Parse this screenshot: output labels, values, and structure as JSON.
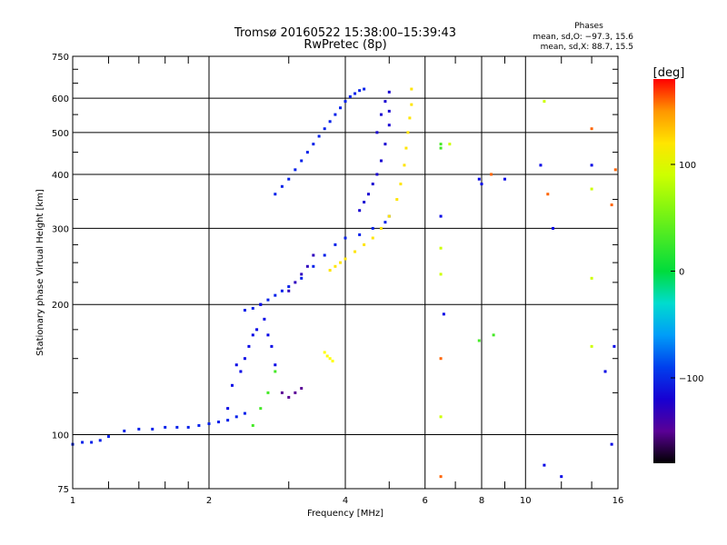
{
  "chart_data": {
    "type": "scatter",
    "title": "Tromsø 20160522 15:38:00–15:39:43",
    "subtitle": "RwPretec (8p)",
    "xlabel": "Frequency [MHz]",
    "ylabel": "Stationary phase Virtual Height [km]",
    "x_scale": "log",
    "y_scale": "log",
    "xlim": [
      1,
      16
    ],
    "ylim": [
      75,
      750
    ],
    "x_ticks": [
      1,
      2,
      4,
      6,
      8,
      10,
      16
    ],
    "x_tick_labels": [
      "1",
      "2",
      "4",
      "6",
      "8",
      "10",
      "16"
    ],
    "x_minor_ticks": [
      1.2,
      1.4,
      1.6,
      1.8,
      3,
      5,
      7,
      9,
      12,
      14
    ],
    "y_ticks": [
      75,
      100,
      200,
      300,
      400,
      500,
      600,
      750
    ],
    "y_tick_labels": [
      "75",
      "100",
      "200",
      "300",
      "400",
      "500",
      "600",
      "750"
    ],
    "grid": true,
    "stats": {
      "title": "Phases",
      "line_o": "mean, sd,O:  −97.3, 15.6",
      "line_x": "mean, sd,X:  88.7, 15.5"
    },
    "colorbar": {
      "label": "[deg]",
      "range": [
        -180,
        180
      ],
      "ticks": [
        100,
        0,
        -100
      ],
      "tick_labels": [
        "100",
        "0",
        "−100"
      ]
    },
    "series": [
      {
        "phase": -100,
        "x": [
          1.0,
          1.05,
          1.1,
          1.15,
          1.2,
          1.3,
          1.4,
          1.5,
          1.6,
          1.7,
          1.8,
          1.9,
          2.0,
          2.1,
          2.2,
          2.3,
          2.4
        ],
        "y": [
          95,
          96,
          96,
          97,
          99,
          102,
          103,
          103,
          104,
          104,
          104,
          105,
          106,
          107,
          108,
          110,
          112
        ]
      },
      {
        "phase": -100,
        "x": [
          2.4,
          2.5,
          2.6,
          2.7,
          2.8,
          2.9,
          3.0,
          3.2,
          3.4,
          3.6,
          3.8,
          4.0,
          4.3,
          4.6,
          4.9,
          5.0
        ],
        "y": [
          194,
          196,
          200,
          205,
          210,
          215,
          220,
          230,
          245,
          260,
          275,
          285,
          290,
          300,
          310,
          320
        ]
      },
      {
        "phase": -100,
        "x": [
          2.8,
          2.9,
          3.0,
          3.1,
          3.2,
          3.3,
          3.4,
          3.5,
          3.6,
          3.7,
          3.8,
          3.9,
          4.0,
          4.1,
          4.2,
          4.3,
          4.4
        ],
        "y": [
          360,
          375,
          390,
          410,
          430,
          450,
          470,
          490,
          510,
          530,
          550,
          570,
          590,
          605,
          615,
          625,
          630
        ]
      },
      {
        "phase": -120,
        "x": [
          4.3,
          4.4,
          4.5,
          4.6,
          4.7,
          4.8,
          4.9,
          5.0,
          5.0,
          5.0,
          4.9,
          4.8,
          4.7
        ],
        "y": [
          330,
          345,
          360,
          380,
          400,
          430,
          470,
          520,
          560,
          620,
          590,
          550,
          500
        ]
      },
      {
        "phase": -110,
        "x": [
          2.2,
          2.25,
          2.3,
          2.35,
          2.4,
          2.45,
          2.5,
          2.55,
          2.6,
          2.65,
          2.7,
          2.75,
          2.8
        ],
        "y": [
          115,
          130,
          145,
          140,
          150,
          160,
          170,
          175,
          200,
          185,
          170,
          160,
          145
        ]
      },
      {
        "phase": -150,
        "x": [
          2.9,
          3.0,
          3.1,
          3.2
        ],
        "y": [
          125,
          122,
          125,
          128
        ]
      },
      {
        "phase": -130,
        "x": [
          3.0,
          3.1,
          3.2,
          3.3,
          3.4
        ],
        "y": [
          215,
          225,
          235,
          245,
          260
        ]
      },
      {
        "phase": 120,
        "x": [
          3.7,
          3.8,
          3.9,
          4.0,
          4.2,
          4.4,
          4.6,
          4.8,
          5.0,
          5.2,
          5.3,
          5.4,
          5.45,
          5.5,
          5.55,
          5.6,
          5.6
        ],
        "y": [
          240,
          245,
          250,
          255,
          265,
          275,
          285,
          300,
          320,
          350,
          380,
          420,
          460,
          500,
          540,
          580,
          630
        ]
      },
      {
        "phase": 110,
        "x": [
          3.6,
          3.65,
          3.7,
          3.75
        ],
        "y": [
          155,
          152,
          150,
          148
        ]
      },
      {
        "phase": 30,
        "x": [
          2.5,
          2.6,
          2.7,
          2.8,
          6.5,
          6.5,
          7.9,
          8.5
        ],
        "y": [
          105,
          115,
          125,
          140,
          460,
          470,
          165,
          170
        ]
      },
      {
        "phase": -110,
        "x": [
          6.5,
          6.6,
          7.9,
          8.0,
          9.0,
          10.8,
          11.0,
          11.5,
          12.0,
          14.0,
          15.0,
          15.5,
          15.7
        ],
        "y": [
          320,
          190,
          390,
          380,
          390,
          420,
          85,
          300,
          80,
          420,
          140,
          95,
          160
        ]
      },
      {
        "phase": 90,
        "x": [
          6.5,
          6.5,
          6.5,
          6.8,
          11.0,
          14.0,
          14.0,
          14.0
        ],
        "y": [
          270,
          235,
          110,
          470,
          590,
          230,
          160,
          370
        ]
      },
      {
        "phase": 160,
        "x": [
          6.5,
          6.5,
          8.4,
          11.2,
          14.0,
          15.5,
          15.8
        ],
        "y": [
          150,
          80,
          400,
          360,
          510,
          340,
          410
        ]
      }
    ]
  }
}
